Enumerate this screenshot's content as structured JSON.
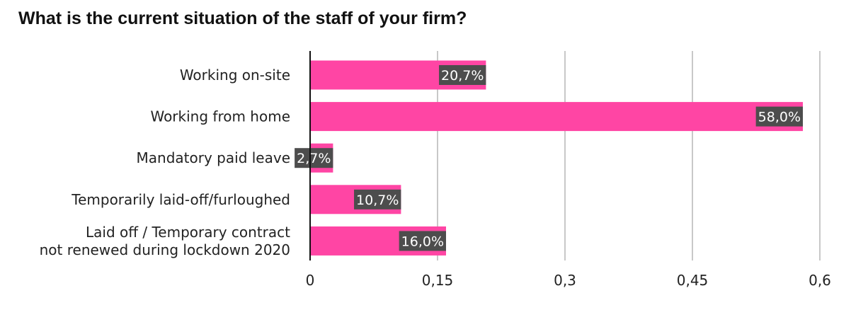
{
  "chart_data": {
    "type": "bar",
    "orientation": "horizontal",
    "title": "What is the current situation of the staff of your firm?",
    "categories": [
      [
        "Working on-site"
      ],
      [
        "Working from home"
      ],
      [
        "Mandatory paid leave"
      ],
      [
        "Temporarily laid-off/furloughed"
      ],
      [
        "Laid off / Temporary contract",
        "not renewed during lockdown 2020"
      ]
    ],
    "values": [
      0.207,
      0.58,
      0.027,
      0.107,
      0.16
    ],
    "data_labels": [
      "20,7%",
      "58,0%",
      "2,7%",
      "10,7%",
      "16,0%"
    ],
    "xlim": [
      0,
      0.6
    ],
    "xticks": [
      0,
      0.15,
      0.3,
      0.45,
      0.6
    ],
    "xtick_labels": [
      "0",
      "0,15",
      "0,3",
      "0,45",
      "0,6"
    ],
    "grid": true,
    "colors": {
      "bar": "#ff45a4",
      "label_bg": "#4d4d4d",
      "grid": "#c8c8c8",
      "axis": "#111111"
    }
  }
}
